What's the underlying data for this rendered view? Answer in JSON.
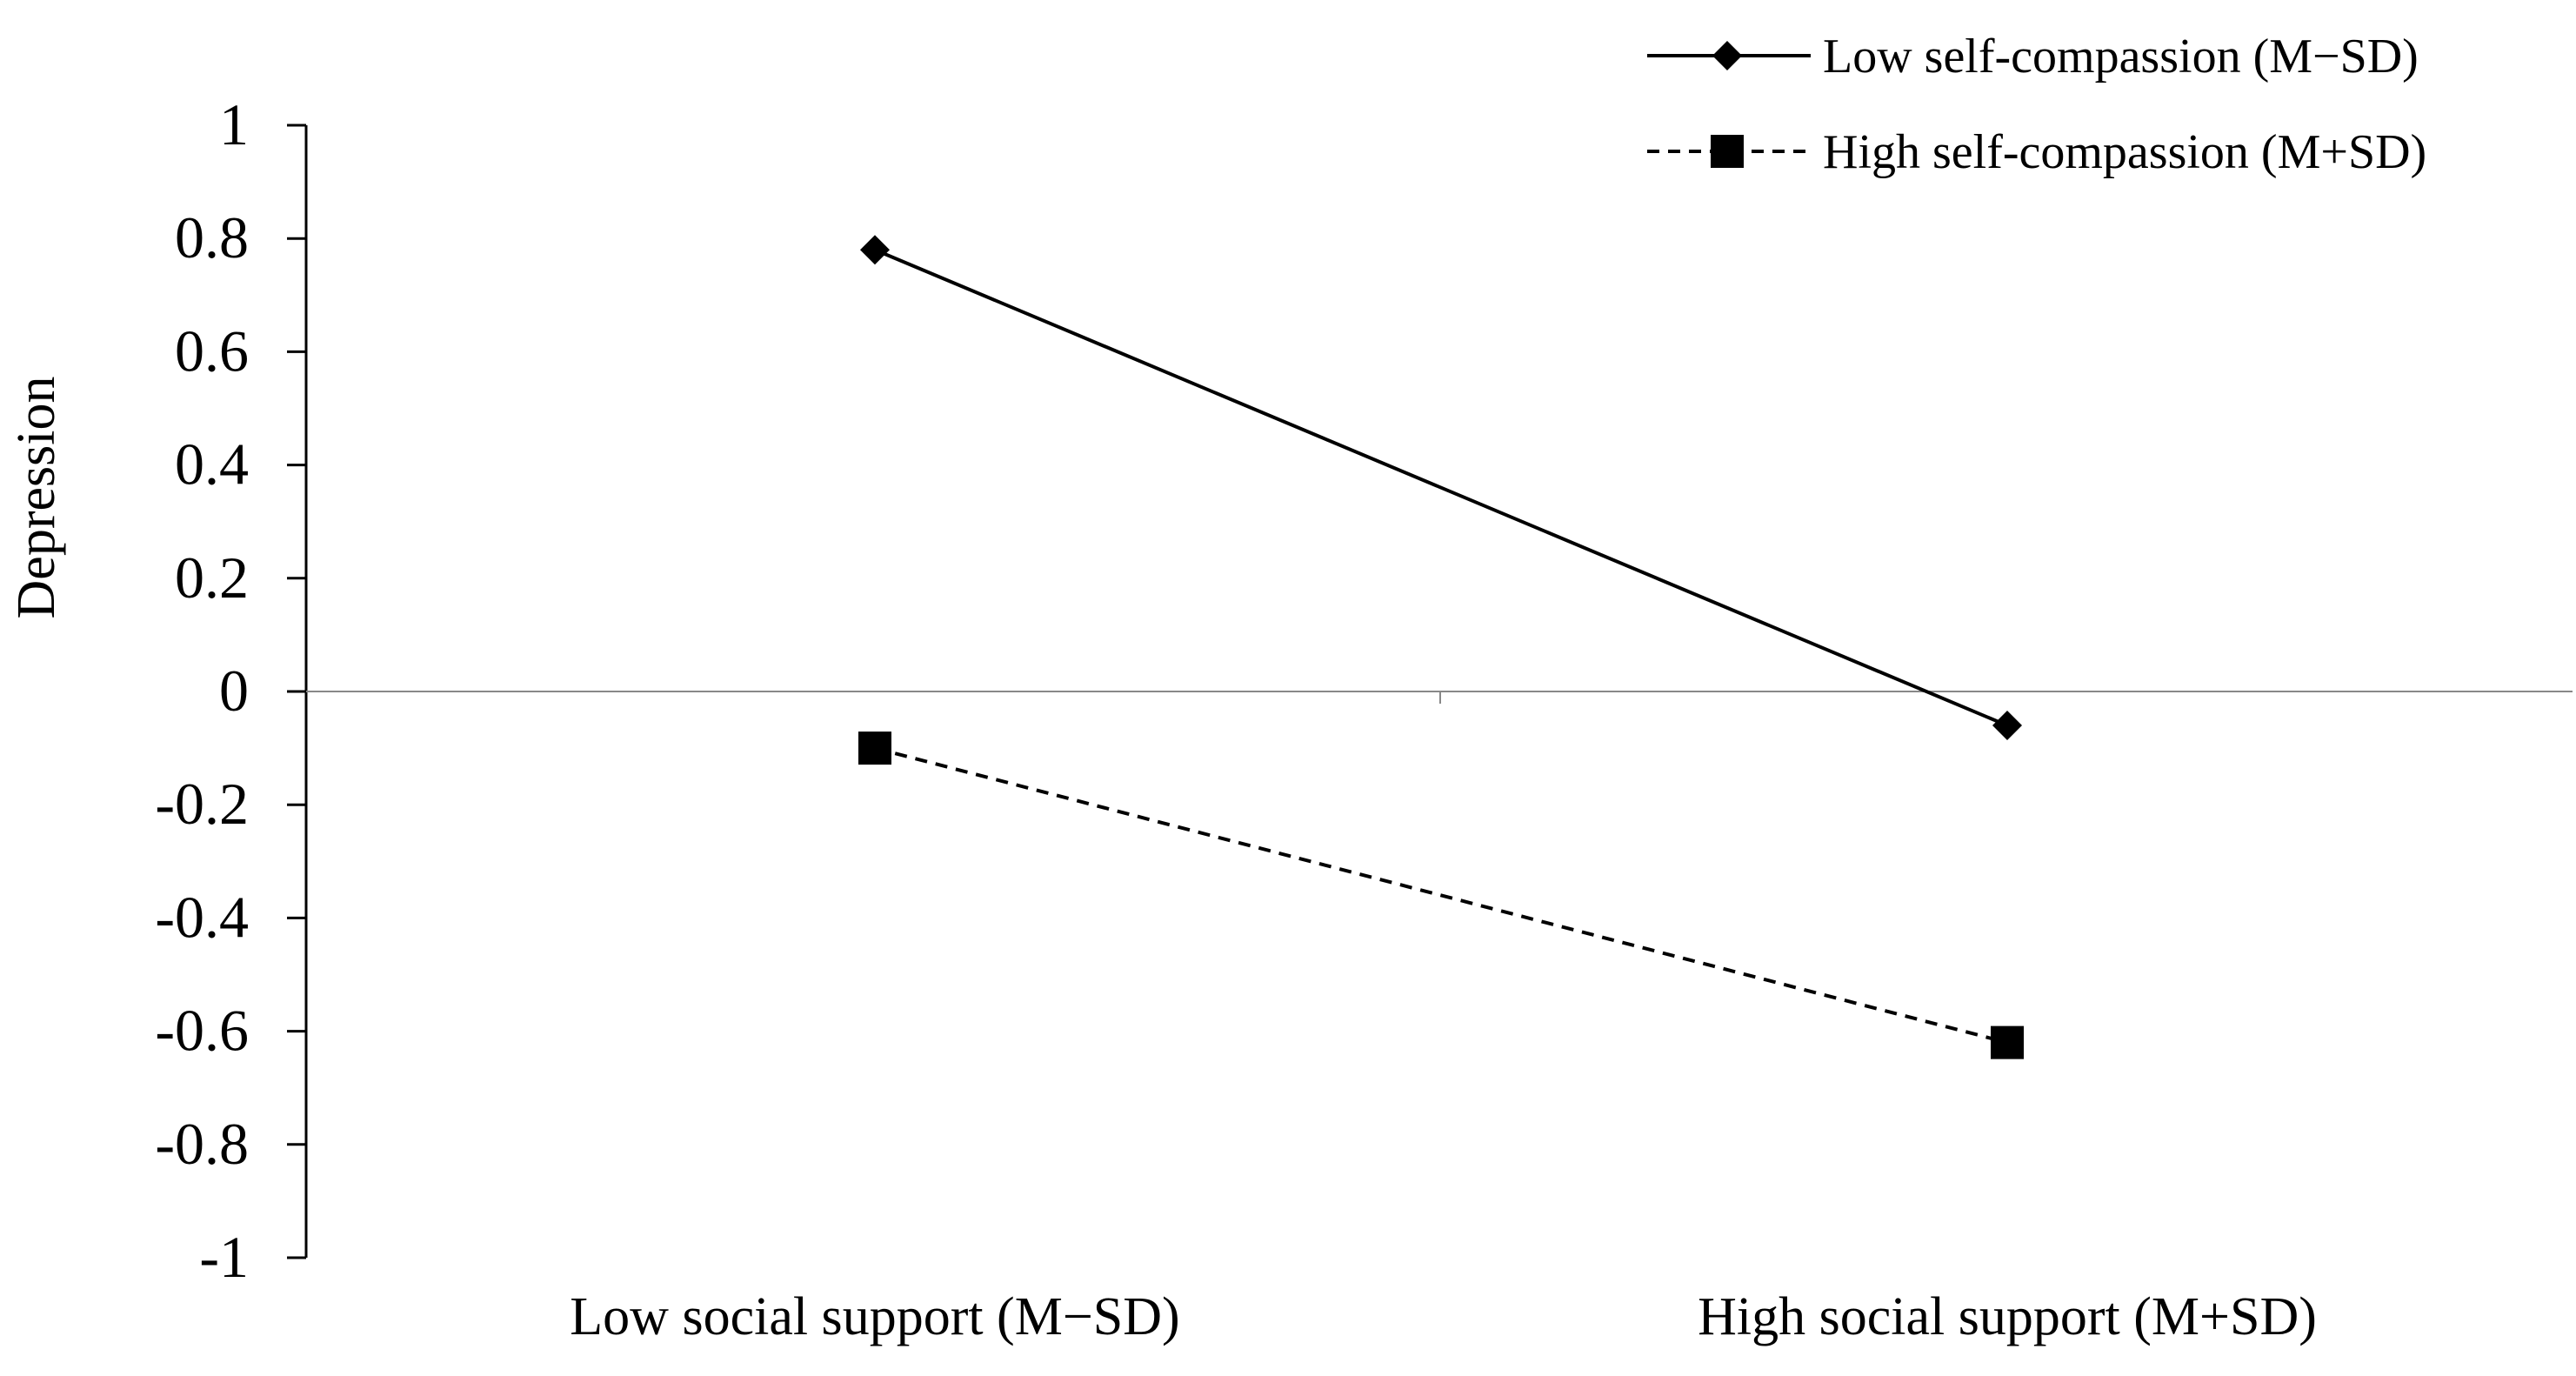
{
  "chart_data": {
    "type": "line",
    "title": "",
    "xlabel": "",
    "ylabel": "Depression",
    "categories": [
      "Low social support (M−SD)",
      "High social support (M+SD)"
    ],
    "ylim": [
      -1,
      1
    ],
    "yticks": [
      "1",
      "0.8",
      "0.6",
      "0.4",
      "0.2",
      "0",
      "-0.2",
      "-0.4",
      "-0.6",
      "-0.8",
      "-1"
    ],
    "ytick_values": [
      1,
      0.8,
      0.6,
      0.4,
      0.2,
      0,
      -0.2,
      -0.4,
      -0.6,
      -0.8,
      -1
    ],
    "grid": false,
    "zero_line": true,
    "legend_position": "top-right",
    "series": [
      {
        "name": "Low self-compassion (M−SD)",
        "values": [
          0.78,
          -0.06
        ],
        "line_style": "solid",
        "marker": "diamond",
        "color": "#000000"
      },
      {
        "name": "High self-compassion (M+SD)",
        "values": [
          -0.1,
          -0.62
        ],
        "line_style": "dashed",
        "marker": "square",
        "color": "#000000"
      }
    ]
  }
}
